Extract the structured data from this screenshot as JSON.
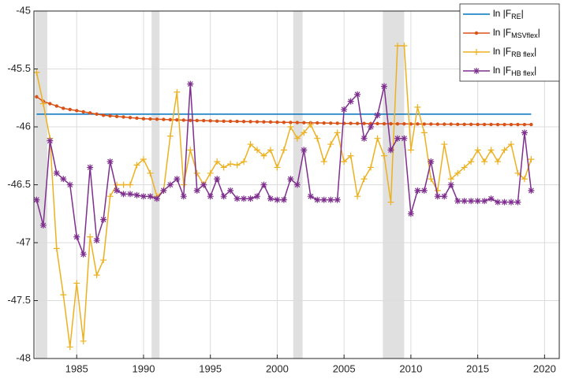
{
  "chart_data": {
    "type": "line",
    "x": [
      1982,
      1982.5,
      1983,
      1983.5,
      1984,
      1984.5,
      1985,
      1985.5,
      1986,
      1986.5,
      1987,
      1987.5,
      1988,
      1988.5,
      1989,
      1989.5,
      1990,
      1990.5,
      1991,
      1991.5,
      1992,
      1992.5,
      1993,
      1993.5,
      1994,
      1994.5,
      1995,
      1995.5,
      1996,
      1996.5,
      1997,
      1997.5,
      1998,
      1998.5,
      1999,
      1999.5,
      2000,
      2000.5,
      2001,
      2001.5,
      2002,
      2002.5,
      2003,
      2003.5,
      2004,
      2004.5,
      2005,
      2005.5,
      2006,
      2006.5,
      2007,
      2007.5,
      2008,
      2008.5,
      2009,
      2009.5,
      2010,
      2010.5,
      2011,
      2011.5,
      2012,
      2012.5,
      2013,
      2013.5,
      2014,
      2014.5,
      2015,
      2015.5,
      2016,
      2016.5,
      2017,
      2017.5,
      2018,
      2018.5,
      2019
    ],
    "series": [
      {
        "name": "ln |F",
        "name_sub": "RE",
        "name_end": "|",
        "color": "#0072bd",
        "marker": "none",
        "values": [
          -45.89,
          -45.89,
          -45.89,
          -45.89,
          -45.89,
          -45.89,
          -45.89,
          -45.89,
          -45.89,
          -45.89,
          -45.89,
          -45.89,
          -45.89,
          -45.89,
          -45.89,
          -45.89,
          -45.89,
          -45.89,
          -45.89,
          -45.89,
          -45.89,
          -45.89,
          -45.89,
          -45.89,
          -45.89,
          -45.89,
          -45.89,
          -45.89,
          -45.89,
          -45.89,
          -45.89,
          -45.89,
          -45.89,
          -45.89,
          -45.89,
          -45.89,
          -45.89,
          -45.89,
          -45.89,
          -45.89,
          -45.89,
          -45.89,
          -45.89,
          -45.89,
          -45.89,
          -45.89,
          -45.89,
          -45.89,
          -45.89,
          -45.89,
          -45.89,
          -45.89,
          -45.89,
          -45.89,
          -45.89,
          -45.89,
          -45.89,
          -45.89,
          -45.89,
          -45.89,
          -45.89,
          -45.89,
          -45.89,
          -45.89,
          -45.89,
          -45.89,
          -45.89,
          -45.89,
          -45.89,
          -45.89,
          -45.89,
          -45.89,
          -45.89,
          -45.89,
          -45.89
        ]
      },
      {
        "name": "ln |F",
        "name_sub": "MSVflex",
        "name_end": "|",
        "color": "#d95319",
        "marker": "dot",
        "values": [
          -45.74,
          -45.78,
          -45.8,
          -45.82,
          -45.84,
          -45.85,
          -45.86,
          -45.87,
          -45.88,
          -45.89,
          -45.9,
          -45.905,
          -45.91,
          -45.915,
          -45.92,
          -45.925,
          -45.93,
          -45.932,
          -45.934,
          -45.936,
          -45.938,
          -45.94,
          -45.942,
          -45.944,
          -45.945,
          -45.946,
          -45.948,
          -45.95,
          -45.951,
          -45.952,
          -45.953,
          -45.954,
          -45.955,
          -45.956,
          -45.957,
          -45.958,
          -45.96,
          -45.961,
          -45.962,
          -45.963,
          -45.964,
          -45.965,
          -45.966,
          -45.967,
          -45.968,
          -45.969,
          -45.97,
          -45.97,
          -45.971,
          -45.971,
          -45.972,
          -45.972,
          -45.973,
          -45.973,
          -45.974,
          -45.974,
          -45.975,
          -45.975,
          -45.976,
          -45.976,
          -45.977,
          -45.977,
          -45.977,
          -45.978,
          -45.978,
          -45.978,
          -45.979,
          -45.979,
          -45.979,
          -45.98,
          -45.98,
          -45.98,
          -45.98,
          -45.98,
          -45.98
        ]
      },
      {
        "name": "ln |F",
        "name_sub": "RB flex",
        "name_end": "|",
        "color": "#edb120",
        "marker": "plus",
        "values": [
          -45.53,
          -45.8,
          -46.1,
          -47.05,
          -47.45,
          -47.9,
          -47.35,
          -47.85,
          -46.95,
          -47.28,
          -47.15,
          -46.6,
          -46.5,
          -46.5,
          -46.5,
          -46.33,
          -46.28,
          -46.4,
          -46.6,
          -46.55,
          -46.08,
          -45.7,
          -46.5,
          -46.2,
          -46.4,
          -46.5,
          -46.4,
          -46.3,
          -46.35,
          -46.32,
          -46.33,
          -46.3,
          -46.15,
          -46.2,
          -46.25,
          -46.2,
          -46.35,
          -46.2,
          -46.0,
          -46.1,
          -46.05,
          -45.98,
          -46.1,
          -46.3,
          -46.15,
          -46.05,
          -46.3,
          -46.25,
          -46.6,
          -46.45,
          -46.35,
          -46.1,
          -46.25,
          -46.65,
          -45.3,
          -45.3,
          -46.2,
          -45.83,
          -46.05,
          -46.45,
          -46.55,
          -46.15,
          -46.45,
          -46.4,
          -46.35,
          -46.3,
          -46.2,
          -46.3,
          -46.2,
          -46.3,
          -46.2,
          -46.15,
          -46.4,
          -46.45,
          -46.28
        ]
      },
      {
        "name": "ln |F",
        "name_sub": "HB flex",
        "name_end": "|",
        "color": "#7e2f8e",
        "marker": "star",
        "values": [
          -46.63,
          -46.85,
          -46.12,
          -46.4,
          -46.45,
          -46.5,
          -46.95,
          -47.1,
          -46.35,
          -46.98,
          -46.8,
          -46.3,
          -46.55,
          -46.58,
          -46.58,
          -46.59,
          -46.6,
          -46.6,
          -46.62,
          -46.55,
          -46.5,
          -46.45,
          -46.6,
          -45.63,
          -46.55,
          -46.5,
          -46.6,
          -46.45,
          -46.6,
          -46.55,
          -46.62,
          -46.62,
          -46.62,
          -46.6,
          -46.5,
          -46.62,
          -46.63,
          -46.63,
          -46.45,
          -46.5,
          -46.2,
          -46.6,
          -46.63,
          -46.63,
          -46.63,
          -46.63,
          -45.85,
          -45.78,
          -45.72,
          -46.1,
          -46.0,
          -45.9,
          -45.65,
          -46.2,
          -46.1,
          -46.1,
          -46.75,
          -46.55,
          -46.55,
          -46.3,
          -46.6,
          -46.6,
          -46.5,
          -46.64,
          -46.64,
          -46.64,
          -46.64,
          -46.64,
          -46.62,
          -46.65,
          -46.65,
          -46.65,
          -46.65,
          -46.05,
          -46.55
        ]
      }
    ],
    "shaded_periods": [
      [
        1981.9,
        1982.8
      ],
      [
        1990.6,
        1991.2
      ],
      [
        2001.2,
        2001.9
      ],
      [
        2007.9,
        2009.5
      ]
    ],
    "shade_color": "#e0e0e0",
    "xlim": [
      1981.8,
      2021.1
    ],
    "ylim": [
      -48,
      -45
    ],
    "xticks": [
      1985,
      1990,
      1995,
      2000,
      2005,
      2010,
      2015,
      2020
    ],
    "yticks": [
      -48,
      -47.5,
      -47,
      -46.5,
      -46,
      -45.5,
      -45
    ],
    "grid": true,
    "legend": "top-right"
  }
}
